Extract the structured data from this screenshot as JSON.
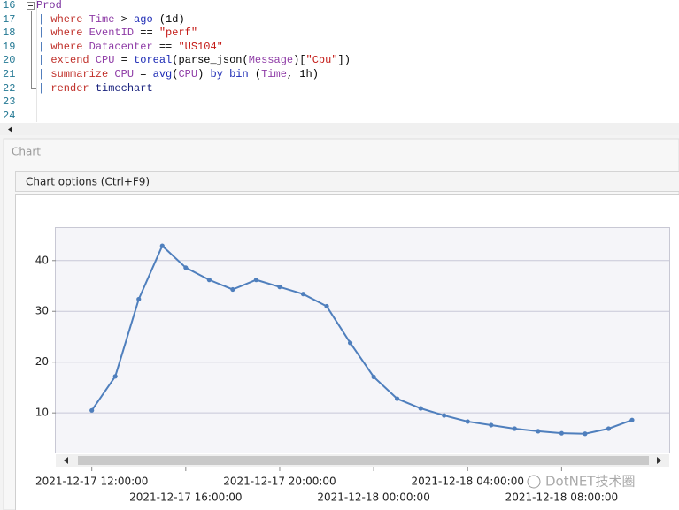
{
  "editor": {
    "lines": [
      {
        "number": 16,
        "tokens": [
          {
            "t": "Prod",
            "c": "#7a2f9e"
          }
        ]
      },
      {
        "number": 17,
        "tokens": [
          {
            "t": "| ",
            "c": "#3f6fb5"
          },
          {
            "t": "where ",
            "c": "#c0302a"
          },
          {
            "t": "Time",
            "c": "#8e3ba6"
          },
          {
            "t": " > ",
            "c": "#000000"
          },
          {
            "t": "ago",
            "c": "#1c2ab5"
          },
          {
            "t": " (1d)",
            "c": "#000000"
          }
        ]
      },
      {
        "number": 18,
        "tokens": [
          {
            "t": "| ",
            "c": "#3f6fb5"
          },
          {
            "t": "where ",
            "c": "#c0302a"
          },
          {
            "t": "EventID",
            "c": "#8e3ba6"
          },
          {
            "t": " == ",
            "c": "#000000"
          },
          {
            "t": "\"perf\"",
            "c": "#c41a16"
          }
        ]
      },
      {
        "number": 19,
        "tokens": [
          {
            "t": "| ",
            "c": "#3f6fb5"
          },
          {
            "t": "where ",
            "c": "#c0302a"
          },
          {
            "t": "Datacenter",
            "c": "#8e3ba6"
          },
          {
            "t": " == ",
            "c": "#000000"
          },
          {
            "t": "\"US104\"",
            "c": "#c41a16"
          }
        ]
      },
      {
        "number": 20,
        "tokens": [
          {
            "t": "| ",
            "c": "#3f6fb5"
          },
          {
            "t": "extend ",
            "c": "#c0302a"
          },
          {
            "t": "CPU",
            "c": "#8e3ba6"
          },
          {
            "t": " = ",
            "c": "#000000"
          },
          {
            "t": "toreal",
            "c": "#1c2ab5"
          },
          {
            "t": "(parse_json(",
            "c": "#000000"
          },
          {
            "t": "Message",
            "c": "#8e3ba6"
          },
          {
            "t": ")[",
            "c": "#000000"
          },
          {
            "t": "\"Cpu\"",
            "c": "#c41a16"
          },
          {
            "t": "])",
            "c": "#000000"
          }
        ]
      },
      {
        "number": 21,
        "tokens": [
          {
            "t": "| ",
            "c": "#3f6fb5"
          },
          {
            "t": "summarize ",
            "c": "#c0302a"
          },
          {
            "t": "CPU",
            "c": "#8e3ba6"
          },
          {
            "t": " = ",
            "c": "#000000"
          },
          {
            "t": "avg",
            "c": "#1c2ab5"
          },
          {
            "t": "(",
            "c": "#000000"
          },
          {
            "t": "CPU",
            "c": "#8e3ba6"
          },
          {
            "t": ") ",
            "c": "#000000"
          },
          {
            "t": "by bin",
            "c": "#1c2ab5"
          },
          {
            "t": " (",
            "c": "#000000"
          },
          {
            "t": "Time",
            "c": "#8e3ba6"
          },
          {
            "t": ", 1h)",
            "c": "#000000"
          }
        ]
      },
      {
        "number": 22,
        "tokens": [
          {
            "t": "| ",
            "c": "#3f6fb5"
          },
          {
            "t": "render ",
            "c": "#c0302a"
          },
          {
            "t": "timechart",
            "c": "#1a237e"
          }
        ]
      },
      {
        "number": 23,
        "tokens": []
      },
      {
        "number": 24,
        "tokens": []
      }
    ]
  },
  "panel_title": "Chart",
  "options_button": "Chart options (Ctrl+F9)",
  "watermark": "DotNET技术圈",
  "chart_data": {
    "type": "line",
    "x": [
      "2021-12-17 12:00:00",
      "2021-12-17 13:00:00",
      "2021-12-17 14:00:00",
      "2021-12-17 15:00:00",
      "2021-12-17 16:00:00",
      "2021-12-17 17:00:00",
      "2021-12-17 18:00:00",
      "2021-12-17 19:00:00",
      "2021-12-17 20:00:00",
      "2021-12-17 21:00:00",
      "2021-12-17 22:00:00",
      "2021-12-17 23:00:00",
      "2021-12-18 00:00:00",
      "2021-12-18 01:00:00",
      "2021-12-18 02:00:00",
      "2021-12-18 03:00:00",
      "2021-12-18 04:00:00",
      "2021-12-18 05:00:00",
      "2021-12-18 06:00:00",
      "2021-12-18 07:00:00",
      "2021-12-18 08:00:00",
      "2021-12-18 09:00:00",
      "2021-12-18 10:00:00",
      "2021-12-18 11:00:00"
    ],
    "values": [
      10.5,
      17.2,
      32.4,
      42.9,
      38.6,
      36.2,
      34.3,
      36.2,
      34.8,
      33.4,
      31.0,
      23.8,
      17.1,
      12.8,
      10.9,
      9.5,
      8.3,
      7.6,
      6.9,
      6.4,
      6.0,
      5.9,
      6.9,
      8.6
    ],
    "color": "#4f7fbd",
    "xlim": [
      "2021-12-17 10:28:00",
      "2021-12-18 12:35:00"
    ],
    "xticks": [
      "2021-12-17 12:00:00",
      "2021-12-17 16:00:00",
      "2021-12-17 20:00:00",
      "2021-12-18 00:00:00",
      "2021-12-18 04:00:00",
      "2021-12-18 08:00:00"
    ],
    "ylim": [
      2.2,
      46.4
    ],
    "yticks": [
      10,
      20,
      30,
      40
    ],
    "grid": true
  }
}
